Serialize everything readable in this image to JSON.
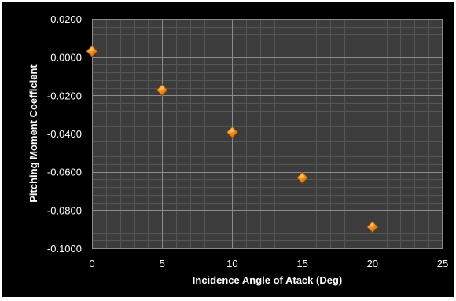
{
  "chart_data": {
    "type": "scatter",
    "title": "",
    "xlabel": "Incidence Angle of Atack (Deg)",
    "ylabel": "Pitching Moment Coefficient",
    "xlim": [
      0,
      25
    ],
    "ylim": [
      -0.1,
      0.02
    ],
    "x_major_step": 5,
    "y_major_step": 0.02,
    "y_tick_decimals": 4,
    "grid": true,
    "legend": "none",
    "series": [
      {
        "x": [
          0,
          5,
          10,
          15,
          20
        ],
        "y": [
          0.0031,
          -0.0172,
          -0.0393,
          -0.0631,
          -0.0888
        ]
      }
    ],
    "colors": {
      "plot_background": "#3c3c3c",
      "major_grid": "#8c8c8c",
      "minor_grid": "#555555",
      "marker_fill": "#f08a1c",
      "marker_highlight": "#ffd38a",
      "marker_edge": "#8a4a06",
      "text": "#ffffff"
    }
  }
}
